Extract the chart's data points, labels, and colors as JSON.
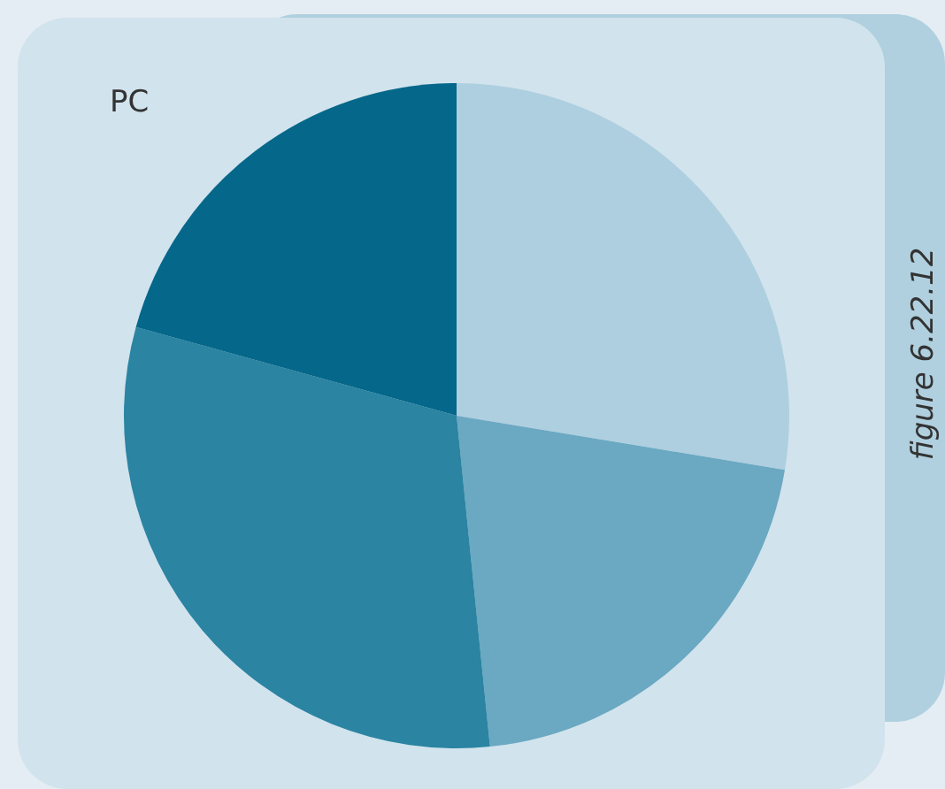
{
  "chart_data": {
    "type": "pie",
    "title": "PC",
    "annotations": [
      "figure 6.22.12"
    ],
    "categories": [
      null,
      null,
      null,
      null
    ],
    "values": [
      27.6,
      20.8,
      30.9,
      20.7
    ],
    "colors": [
      "#aecfdf",
      "#6ba8c2",
      "#2a84a2",
      "#05678a"
    ],
    "legend": false
  }
}
